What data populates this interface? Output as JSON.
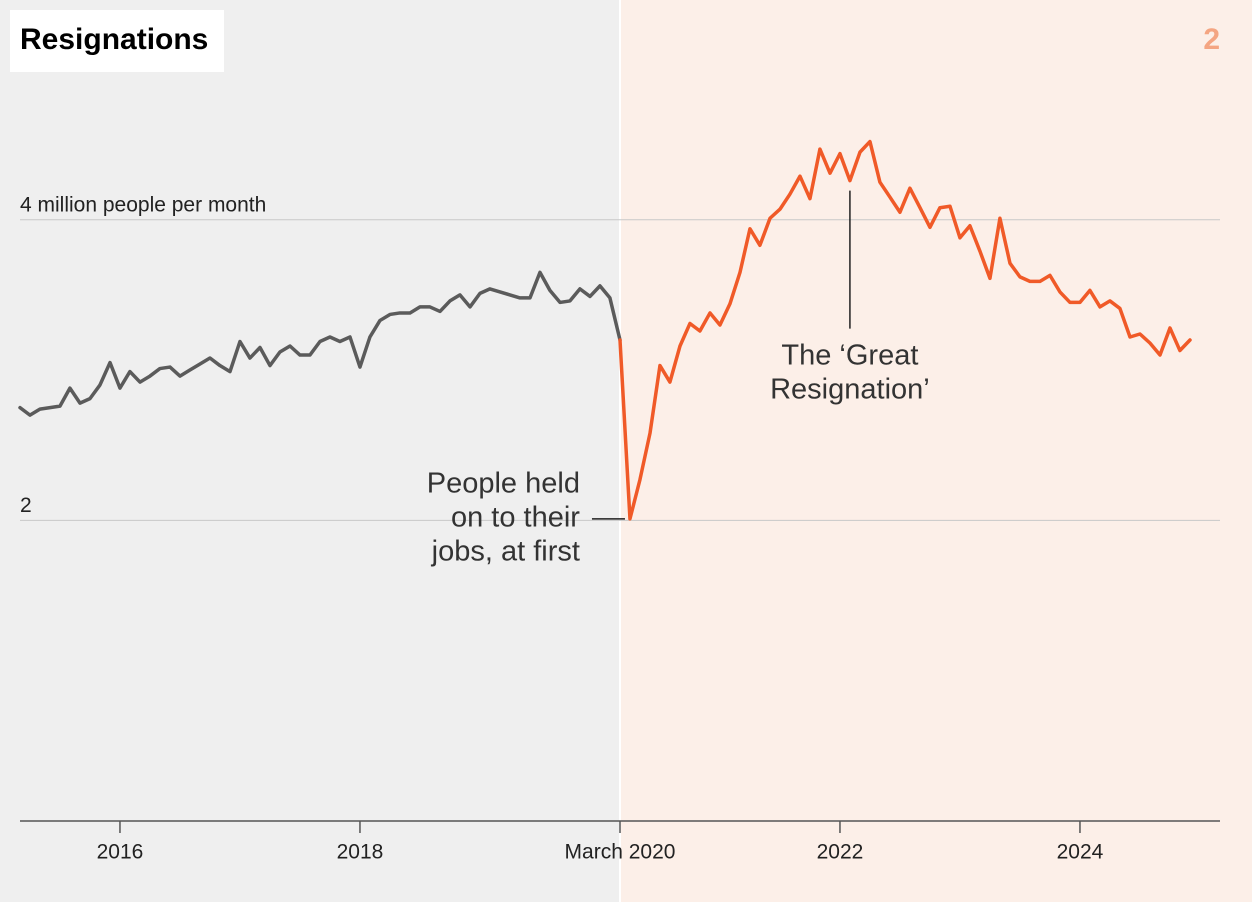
{
  "chart_data": {
    "type": "line",
    "title": "Resignations",
    "panel_label": "2",
    "x": [
      2015.167,
      2015.25,
      2015.333,
      2015.417,
      2015.5,
      2015.583,
      2015.667,
      2015.75,
      2015.833,
      2015.917,
      2016,
      2016.083,
      2016.167,
      2016.25,
      2016.333,
      2016.417,
      2016.5,
      2016.583,
      2016.667,
      2016.75,
      2016.833,
      2016.917,
      2017,
      2017.083,
      2017.167,
      2017.25,
      2017.333,
      2017.417,
      2017.5,
      2017.583,
      2017.667,
      2017.75,
      2017.833,
      2017.917,
      2018,
      2018.083,
      2018.167,
      2018.25,
      2018.333,
      2018.417,
      2018.5,
      2018.583,
      2018.667,
      2018.75,
      2018.833,
      2018.917,
      2019,
      2019.083,
      2019.167,
      2019.25,
      2019.333,
      2019.417,
      2019.5,
      2019.583,
      2019.667,
      2019.75,
      2019.833,
      2019.917,
      2020,
      2020.083,
      2020.167,
      2020.25,
      2020.333,
      2020.417,
      2020.5,
      2020.583,
      2020.667,
      2020.75,
      2020.833,
      2020.917,
      2021,
      2021.083,
      2021.167,
      2021.25,
      2021.333,
      2021.417,
      2021.5,
      2021.583,
      2021.667,
      2021.75,
      2021.833,
      2021.917,
      2022,
      2022.083,
      2022.167,
      2022.25,
      2022.333,
      2022.417,
      2022.5,
      2022.583,
      2022.667,
      2022.75,
      2022.833,
      2022.917,
      2023,
      2023.083,
      2023.167,
      2023.25,
      2023.333,
      2023.417,
      2023.5,
      2023.583,
      2023.667,
      2023.75,
      2023.833,
      2023.917,
      2024,
      2024.083,
      2024.167,
      2024.25,
      2024.333,
      2024.417,
      2024.5,
      2024.583,
      2024.667,
      2024.75,
      2024.833,
      2024.917
    ],
    "series": [
      {
        "color": "#5b5b5b",
        "values": [
          2.75,
          2.7,
          2.74,
          2.75,
          2.76,
          2.88,
          2.78,
          2.81,
          2.9,
          3.05,
          2.88,
          2.99,
          2.92,
          2.96,
          3.01,
          3.02,
          2.96,
          3.0,
          3.04,
          3.08,
          3.03,
          2.99,
          3.19,
          3.08,
          3.15,
          3.03,
          3.12,
          3.16,
          3.1,
          3.1,
          3.19,
          3.22,
          3.19,
          3.22,
          3.02,
          3.22,
          3.33,
          3.37,
          3.38,
          3.38,
          3.42,
          3.42,
          3.39,
          3.46,
          3.5,
          3.42,
          3.51,
          3.54,
          3.52,
          3.5,
          3.48,
          3.48,
          3.65,
          3.53,
          3.45,
          3.46,
          3.54,
          3.49,
          3.56,
          3.48,
          3.2,
          null,
          null,
          null,
          null,
          null,
          null,
          null,
          null,
          null,
          null,
          null,
          null,
          null,
          null,
          null,
          null,
          null,
          null,
          null,
          null,
          null,
          null,
          null,
          null,
          null,
          null,
          null,
          null,
          null,
          null,
          null,
          null,
          null,
          null,
          null,
          null,
          null,
          null,
          null,
          null,
          null,
          null,
          null,
          null,
          null,
          null,
          null,
          null,
          null,
          null,
          null,
          null,
          null,
          null,
          null,
          null,
          null
        ]
      },
      {
        "color": "#f05a28",
        "values": [
          null,
          null,
          null,
          null,
          null,
          null,
          null,
          null,
          null,
          null,
          null,
          null,
          null,
          null,
          null,
          null,
          null,
          null,
          null,
          null,
          null,
          null,
          null,
          null,
          null,
          null,
          null,
          null,
          null,
          null,
          null,
          null,
          null,
          null,
          null,
          null,
          null,
          null,
          null,
          null,
          null,
          null,
          null,
          null,
          null,
          null,
          null,
          null,
          null,
          null,
          null,
          null,
          null,
          null,
          null,
          null,
          null,
          null,
          null,
          null,
          3.2,
          2.01,
          2.27,
          2.58,
          3.03,
          2.92,
          3.16,
          3.31,
          3.26,
          3.38,
          3.3,
          3.44,
          3.65,
          3.94,
          3.83,
          4.01,
          4.07,
          4.17,
          4.29,
          4.14,
          4.47,
          4.31,
          4.44,
          4.26,
          4.45,
          4.52,
          4.25,
          4.15,
          4.05,
          4.21,
          4.08,
          3.95,
          4.08,
          4.09,
          3.88,
          3.96,
          3.79,
          3.61,
          4.01,
          3.71,
          3.62,
          3.59,
          3.59,
          3.63,
          3.52,
          3.45,
          3.45,
          3.53,
          3.42,
          3.46,
          3.41,
          3.22,
          3.24,
          3.18,
          3.1,
          3.28,
          3.13,
          3.2
        ]
      }
    ],
    "xlim": [
      2015.167,
      2025.167
    ],
    "xticks": [
      2016,
      2018,
      {
        "value": 2020.167,
        "label": "March 2020"
      },
      2022,
      2024
    ],
    "ylim": [
      0,
      4.8
    ],
    "yticks": [
      2,
      {
        "value": 4,
        "label": "4 million people per month"
      }
    ],
    "grid": true,
    "annotations": [
      {
        "lines": [
          "The ‘Great",
          "Resignation’"
        ],
        "x": 2022.083,
        "y": 4.26
      },
      {
        "lines": [
          "People held",
          "on to their",
          "jobs, at first"
        ],
        "x": 2020.25,
        "y": 2.01
      }
    ]
  }
}
